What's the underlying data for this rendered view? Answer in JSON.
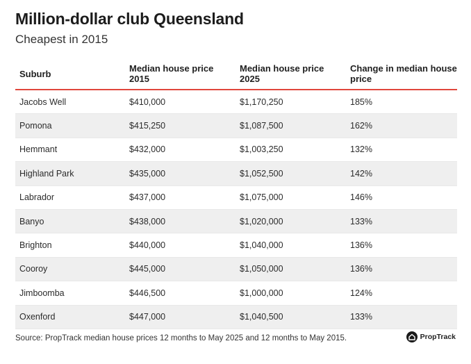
{
  "title": "Million-dollar club Queensland",
  "subtitle": "Cheapest in 2015",
  "footer": "Source: PropTrack median house prices 12 months to May 2025 and 12 months to May 2015.",
  "logo_text": "PropTrack",
  "accent_color": "#e0463c",
  "chart_data": {
    "type": "table",
    "columns": [
      "Suburb",
      "Median house price 2015",
      "Median house price 2025",
      "Change in median house price"
    ],
    "rows": [
      [
        "Jacobs Well",
        "$410,000",
        "$1,170,250",
        "185%"
      ],
      [
        "Pomona",
        "$415,250",
        "$1,087,500",
        "162%"
      ],
      [
        "Hemmant",
        "$432,000",
        "$1,003,250",
        "132%"
      ],
      [
        "Highland Park",
        "$435,000",
        "$1,052,500",
        "142%"
      ],
      [
        "Labrador",
        "$437,000",
        "$1,075,000",
        "146%"
      ],
      [
        "Banyo",
        "$438,000",
        "$1,020,000",
        "133%"
      ],
      [
        "Brighton",
        "$440,000",
        "$1,040,000",
        "136%"
      ],
      [
        "Cooroy",
        "$445,000",
        "$1,050,000",
        "136%"
      ],
      [
        "Jimboomba",
        "$446,500",
        "$1,000,000",
        "124%"
      ],
      [
        "Oxenford",
        "$447,000",
        "$1,040,500",
        "133%"
      ]
    ]
  }
}
